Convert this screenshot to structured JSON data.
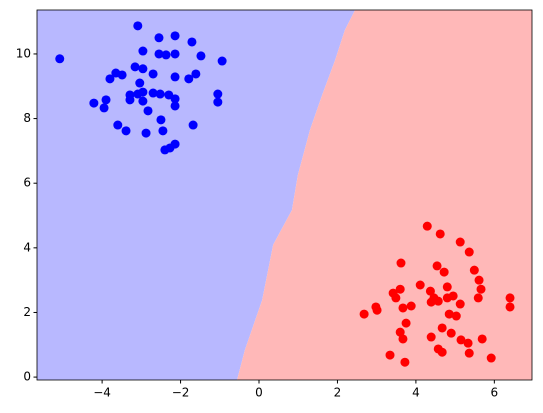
{
  "chart_data": {
    "type": "scatter",
    "xlim": [
      -5.66,
      6.96
    ],
    "ylim": [
      -0.09,
      11.36
    ],
    "xticks": [
      {
        "value": -4,
        "label": "−4"
      },
      {
        "value": -2,
        "label": "−2"
      },
      0,
      2,
      4,
      6
    ],
    "yticks": [
      0,
      2,
      4,
      6,
      8,
      10
    ],
    "decision_boundary": {
      "x": [
        -0.56,
        -0.36,
        0.08,
        0.36,
        0.84,
        0.99,
        1.3,
        1.61,
        1.94,
        2.19,
        2.45
      ],
      "y": [
        -0.09,
        0.84,
        2.38,
        4.09,
        5.17,
        6.25,
        7.65,
        8.73,
        9.81,
        10.74,
        11.36
      ]
    },
    "region_colors": [
      "#b8b8ff",
      "#ffb8b8"
    ],
    "series": [
      {
        "color": "#0000ff",
        "x": [
          -5.08,
          -3.09,
          -2.14,
          -2.55,
          -2.96,
          -2.55,
          -2.37,
          -2.14,
          -1.71,
          -1.48,
          -0.94,
          -3.16,
          -2.96,
          -2.7,
          -3.65,
          -3.49,
          -3.8,
          -2.14,
          -1.61,
          -1.79,
          -3.04,
          -1.05,
          -1.05,
          -4.21,
          -3.9,
          -3.95,
          -3.29,
          -3.09,
          -2.96,
          -2.7,
          -2.52,
          -2.3,
          -2.14,
          -2.14,
          -3.29,
          -2.96,
          -2.83,
          -2.5,
          -3.6,
          -3.39,
          -2.88,
          -2.45,
          -1.68,
          -2.14,
          -2.27,
          -2.4
        ],
        "values": [
          9.85,
          10.87,
          10.56,
          10.5,
          10.09,
          10.0,
          9.97,
          10.0,
          10.37,
          9.94,
          9.78,
          9.6,
          9.54,
          9.38,
          9.41,
          9.35,
          9.23,
          9.29,
          9.38,
          9.23,
          9.1,
          8.76,
          8.51,
          8.48,
          8.58,
          8.33,
          8.73,
          8.76,
          8.82,
          8.79,
          8.76,
          8.73,
          8.61,
          8.39,
          8.58,
          8.54,
          8.24,
          7.96,
          7.8,
          7.62,
          7.55,
          7.62,
          7.8,
          7.21,
          7.09,
          7.03
        ]
      },
      {
        "color": "#ff0000",
        "x": [
          4.29,
          4.62,
          5.13,
          5.36,
          3.62,
          4.54,
          5.49,
          4.72,
          5.61,
          4.11,
          4.8,
          4.37,
          5.66,
          3.6,
          3.42,
          3.49,
          4.46,
          4.8,
          4.95,
          5.59,
          6.4,
          4.39,
          4.57,
          5.13,
          3.88,
          3.67,
          2.98,
          3.01,
          6.4,
          2.68,
          4.85,
          5.03,
          3.75,
          4.67,
          4.9,
          3.6,
          4.39,
          5.15,
          5.33,
          5.69,
          3.67,
          4.57,
          4.67,
          5.36,
          3.34,
          5.92,
          3.72
        ],
        "values": [
          4.67,
          4.43,
          4.18,
          3.87,
          3.53,
          3.44,
          3.31,
          3.25,
          3.0,
          2.85,
          2.79,
          2.66,
          2.72,
          2.72,
          2.6,
          2.45,
          2.45,
          2.45,
          2.51,
          2.45,
          2.45,
          2.32,
          2.35,
          2.26,
          2.2,
          2.14,
          2.17,
          2.07,
          2.17,
          1.95,
          1.95,
          1.89,
          1.67,
          1.52,
          1.36,
          1.39,
          1.24,
          1.15,
          1.05,
          1.18,
          1.18,
          0.87,
          0.77,
          0.74,
          0.68,
          0.59,
          0.46
        ]
      }
    ]
  }
}
